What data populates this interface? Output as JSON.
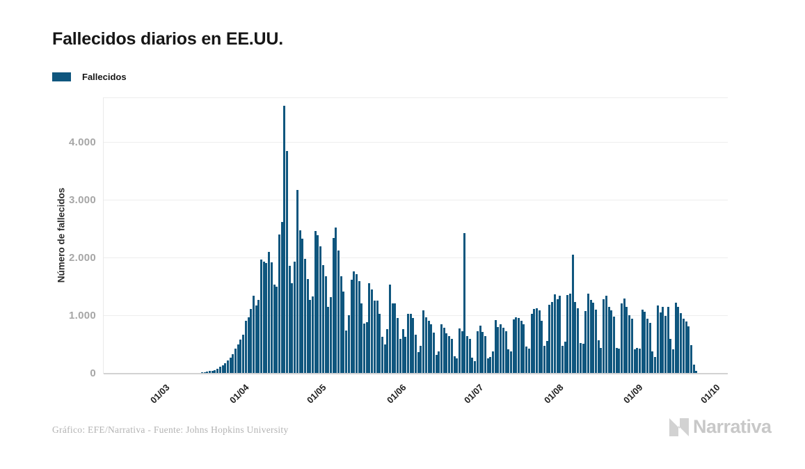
{
  "page": {
    "title": "Fallecidos diarios en EE.UU."
  },
  "legend": {
    "label": "Fallecidos"
  },
  "y_axis": {
    "title": "Número de fallecidos"
  },
  "footer": {
    "credit": "Gráfico: EFE/Narrativa - Fuente: Johns Hopkins University",
    "logo_text": "Narrativa"
  },
  "colors": {
    "bar": "#0f567e",
    "grid": "#ededed",
    "baseline": "#d2d2d2",
    "y_tick_text": "#a6a6a6",
    "x_tick_text": "#1f1f1f",
    "title_text": "#161616",
    "footer_text": "#b3b3b3",
    "logo_gray": "#cdcdcd"
  },
  "chart_data": {
    "type": "bar",
    "title": "Fallecidos diarios en EE.UU.",
    "xlabel": "",
    "ylabel": "Número de fallecidos",
    "legend_entries": [
      "Fallecidos"
    ],
    "legend_position": "top-left",
    "grid": true,
    "ylim": [
      0,
      4777
    ],
    "yticks": [
      {
        "value": 0,
        "label": "0"
      },
      {
        "value": 1000,
        "label": "1.000"
      },
      {
        "value": 2000,
        "label": "2.000"
      },
      {
        "value": 3000,
        "label": "3.000"
      },
      {
        "value": 4000,
        "label": "4.000"
      }
    ],
    "x_start_date": "2020-02-17",
    "frequency": "daily",
    "xticks": [
      {
        "label": "01/03",
        "day_index": 13
      },
      {
        "label": "01/04",
        "day_index": 44
      },
      {
        "label": "01/05",
        "day_index": 74
      },
      {
        "label": "01/06",
        "day_index": 105
      },
      {
        "label": "01/07",
        "day_index": 135
      },
      {
        "label": "01/08",
        "day_index": 166
      },
      {
        "label": "01/09",
        "day_index": 197
      },
      {
        "label": "01/10",
        "day_index": 227
      }
    ],
    "series": [
      {
        "name": "Fallecidos",
        "values": [
          0,
          0,
          0,
          0,
          0,
          0,
          0,
          0,
          0,
          0,
          1,
          0,
          1,
          1,
          1,
          3,
          2,
          3,
          3,
          4,
          4,
          4,
          6,
          7,
          9,
          11,
          13,
          19,
          26,
          32,
          44,
          52,
          64,
          90,
          115,
          145,
          180,
          230,
          275,
          340,
          430,
          510,
          590,
          670,
          920,
          970,
          1120,
          1350,
          1180,
          1270,
          1970,
          1940,
          1910,
          2110,
          1920,
          1540,
          1510,
          2410,
          2620,
          4630,
          3850,
          1870,
          1560,
          1940,
          3180,
          2480,
          2330,
          1990,
          1640,
          1270,
          1340,
          2470,
          2390,
          2200,
          1880,
          1690,
          1150,
          1320,
          2350,
          2530,
          2130,
          1690,
          1420,
          750,
          1010,
          1630,
          1770,
          1720,
          1600,
          1220,
          870,
          890,
          1570,
          1460,
          1260,
          1260,
          1040,
          640,
          500,
          770,
          1540,
          1220,
          1210,
          960,
          605,
          770,
          640,
          1040,
          1030,
          960,
          670,
          370,
          480,
          1090,
          980,
          920,
          850,
          710,
          330,
          390,
          850,
          800,
          700,
          650,
          600,
          300,
          270,
          780,
          740,
          2430,
          650,
          600,
          280,
          220,
          740,
          830,
          720,
          650,
          270,
          290,
          390,
          930,
          810,
          850,
          800,
          730,
          420,
          380,
          940,
          980,
          960,
          920,
          850,
          470,
          430,
          1040,
          1120,
          1130,
          1100,
          910,
          480,
          560,
          1190,
          1240,
          1370,
          1290,
          1350,
          480,
          550,
          1360,
          1380,
          2060,
          1240,
          1130,
          530,
          520,
          1080,
          1380,
          1270,
          1230,
          1110,
          580,
          450,
          1290,
          1350,
          1150,
          1090,
          990,
          440,
          430,
          1220,
          1300,
          1150,
          1010,
          950,
          420,
          450,
          430,
          1110,
          1070,
          950,
          880,
          390,
          290,
          1180,
          1060,
          1150,
          1000,
          1160,
          600,
          420,
          1230,
          1160,
          1050,
          950,
          900,
          820,
          490,
          160,
          45
        ]
      }
    ]
  }
}
